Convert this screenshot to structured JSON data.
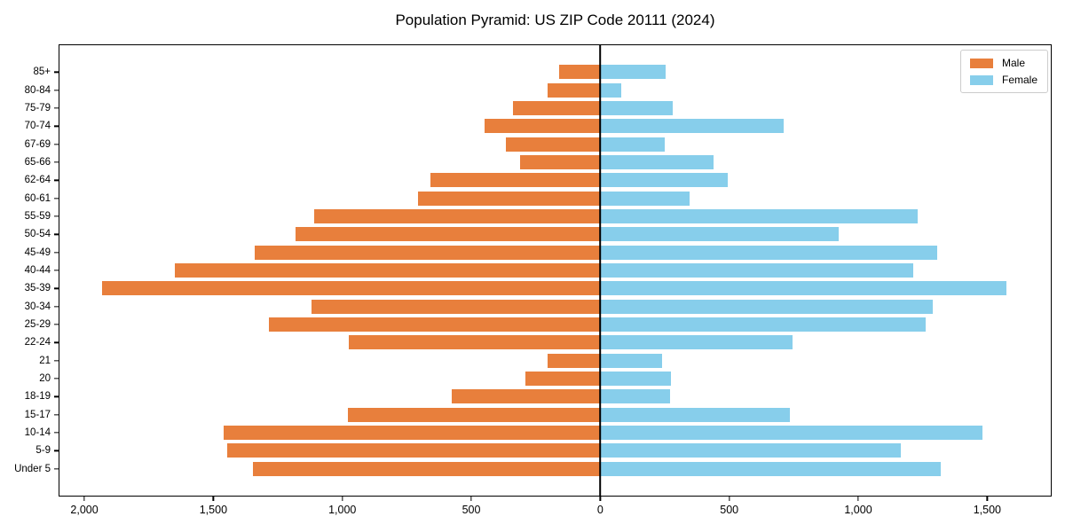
{
  "figure": {
    "title": "Population Pyramid: US ZIP Code 20111 (2024)"
  },
  "legend": {
    "items": [
      {
        "label": "Male",
        "color": "#E87F3C"
      },
      {
        "label": "Female",
        "color": "#87CEEB"
      }
    ]
  },
  "colors": {
    "male": "#E87F3C",
    "female": "#87CEEB",
    "axis": "#000000",
    "legend_border": "#cccccc"
  },
  "chart_data": {
    "type": "bar",
    "subtype": "population-pyramid",
    "title": "Population Pyramid: US ZIP Code 20111 (2024)",
    "xlabel": "",
    "ylabel": "",
    "grid": false,
    "legend_position": "upper-right",
    "xlim": [
      -2100,
      1750
    ],
    "x_tick_values": [
      -2000,
      -1500,
      -1000,
      -500,
      0,
      500,
      1000,
      1500
    ],
    "x_tick_labels": [
      "2,000",
      "1,500",
      "1,000",
      "500",
      "0",
      "500",
      "1,000",
      "1,500"
    ],
    "categories_top_to_bottom": [
      "85+",
      "80-84",
      "75-79",
      "70-74",
      "67-69",
      "65-66",
      "62-64",
      "60-61",
      "55-59",
      "50-54",
      "45-49",
      "40-44",
      "35-39",
      "30-34",
      "25-29",
      "22-24",
      "21",
      "20",
      "18-19",
      "15-17",
      "10-14",
      "5-9",
      "Under 5"
    ],
    "series": [
      {
        "name": "Male",
        "side": "left",
        "color": "#E87F3C",
        "values": [
          160,
          205,
          340,
          450,
          365,
          310,
          660,
          705,
          1110,
          1180,
          1340,
          1650,
          1930,
          1120,
          1285,
          975,
          205,
          290,
          575,
          980,
          1460,
          1445,
          1345
        ]
      },
      {
        "name": "Female",
        "side": "right",
        "color": "#87CEEB",
        "values": [
          255,
          80,
          280,
          710,
          250,
          440,
          495,
          345,
          1230,
          925,
          1305,
          1215,
          1575,
          1290,
          1260,
          745,
          240,
          275,
          270,
          735,
          1480,
          1165,
          1320
        ]
      }
    ]
  }
}
